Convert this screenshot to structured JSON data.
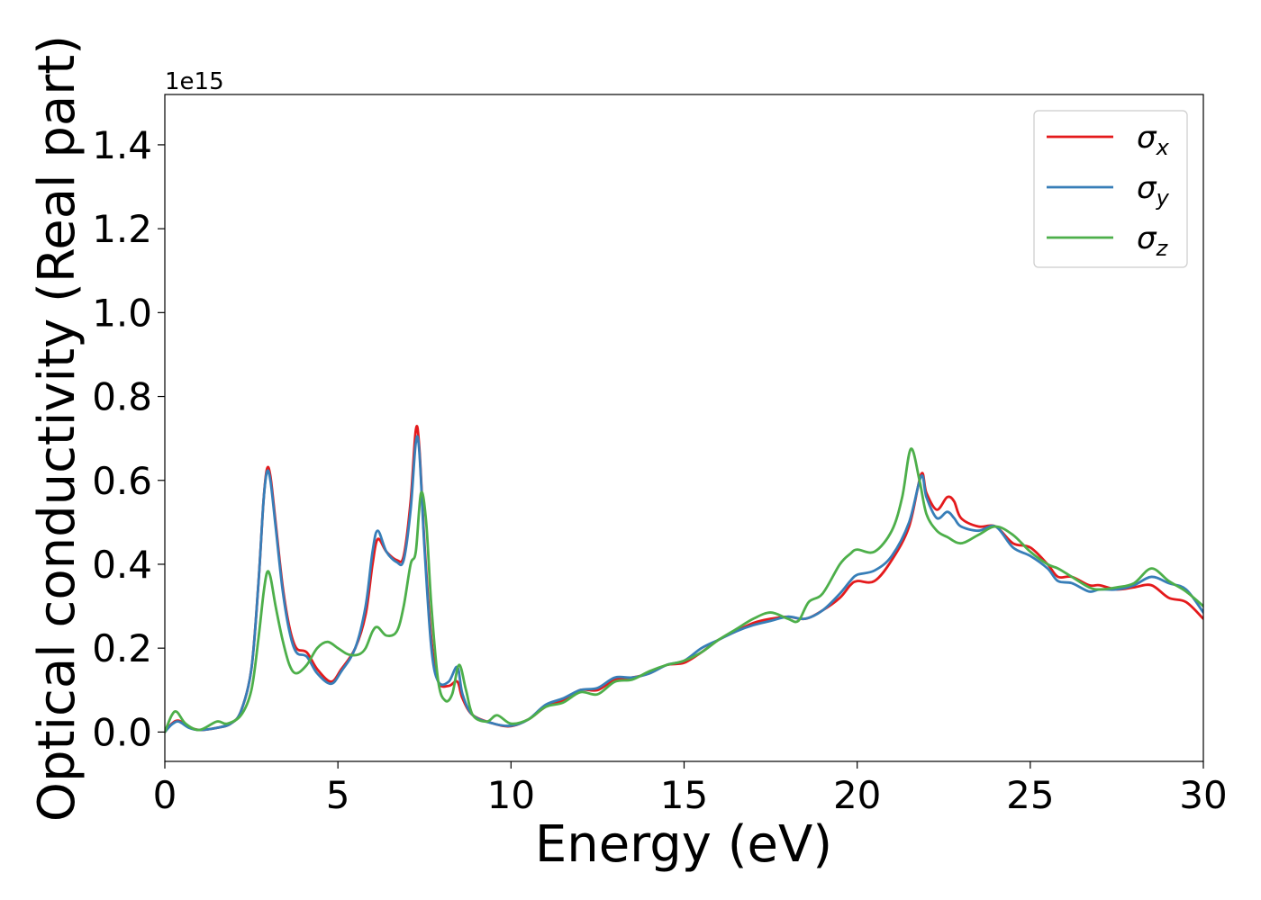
{
  "chart_data": {
    "type": "line",
    "title": "",
    "xlabel": "Energy (eV)",
    "ylabel": "Optical conductivity (Real part)",
    "y_offset_text": "1e15",
    "y_scale": 1000000000000000.0,
    "xlim": [
      0,
      30
    ],
    "ylim": [
      -0.07,
      1.52
    ],
    "xticks": [
      0,
      5,
      10,
      15,
      20,
      25,
      30
    ],
    "xtick_labels": [
      "0",
      "5",
      "10",
      "15",
      "20",
      "25",
      "30"
    ],
    "yticks": [
      0.0,
      0.2,
      0.4,
      0.6,
      0.8,
      1.0,
      1.2,
      1.4
    ],
    "ytick_labels": [
      "0.0",
      "0.2",
      "0.4",
      "0.6",
      "0.8",
      "1.0",
      "1.2",
      "1.4"
    ],
    "grid": false,
    "legend_position": "top-right",
    "series": [
      {
        "name": "σx",
        "legend_symbol": "σ",
        "legend_subscript": "x",
        "color": "#e41a1c",
        "points": [
          [
            0,
            0.0
          ],
          [
            0.2,
            0.02
          ],
          [
            0.4,
            0.027
          ],
          [
            0.7,
            0.012
          ],
          [
            1.0,
            0.005
          ],
          [
            1.5,
            0.01
          ],
          [
            1.9,
            0.02
          ],
          [
            2.2,
            0.05
          ],
          [
            2.5,
            0.15
          ],
          [
            2.7,
            0.35
          ],
          [
            2.85,
            0.55
          ],
          [
            2.95,
            0.627
          ],
          [
            3.05,
            0.61
          ],
          [
            3.2,
            0.5
          ],
          [
            3.4,
            0.35
          ],
          [
            3.6,
            0.25
          ],
          [
            3.8,
            0.2
          ],
          [
            4.1,
            0.19
          ],
          [
            4.4,
            0.15
          ],
          [
            4.8,
            0.12
          ],
          [
            5.1,
            0.15
          ],
          [
            5.5,
            0.2
          ],
          [
            5.8,
            0.28
          ],
          [
            6.0,
            0.4
          ],
          [
            6.15,
            0.46
          ],
          [
            6.4,
            0.43
          ],
          [
            6.7,
            0.41
          ],
          [
            6.9,
            0.42
          ],
          [
            7.1,
            0.55
          ],
          [
            7.25,
            0.72
          ],
          [
            7.35,
            0.68
          ],
          [
            7.5,
            0.45
          ],
          [
            7.7,
            0.22
          ],
          [
            7.9,
            0.12
          ],
          [
            8.2,
            0.11
          ],
          [
            8.45,
            0.12
          ],
          [
            8.6,
            0.08
          ],
          [
            8.9,
            0.04
          ],
          [
            9.5,
            0.02
          ],
          [
            10.0,
            0.014
          ],
          [
            10.5,
            0.03
          ],
          [
            11.0,
            0.06
          ],
          [
            11.5,
            0.075
          ],
          [
            12.0,
            0.1
          ],
          [
            12.5,
            0.1
          ],
          [
            13.0,
            0.125
          ],
          [
            13.5,
            0.13
          ],
          [
            14.0,
            0.14
          ],
          [
            14.5,
            0.16
          ],
          [
            15.0,
            0.165
          ],
          [
            15.5,
            0.19
          ],
          [
            16.0,
            0.22
          ],
          [
            16.5,
            0.24
          ],
          [
            17.0,
            0.26
          ],
          [
            17.5,
            0.27
          ],
          [
            18.0,
            0.275
          ],
          [
            18.5,
            0.27
          ],
          [
            19.0,
            0.29
          ],
          [
            19.5,
            0.32
          ],
          [
            19.8,
            0.35
          ],
          [
            20.0,
            0.36
          ],
          [
            20.5,
            0.36
          ],
          [
            21.0,
            0.41
          ],
          [
            21.5,
            0.49
          ],
          [
            21.85,
            0.615
          ],
          [
            22.0,
            0.57
          ],
          [
            22.3,
            0.53
          ],
          [
            22.6,
            0.56
          ],
          [
            22.8,
            0.55
          ],
          [
            23.0,
            0.51
          ],
          [
            23.5,
            0.49
          ],
          [
            24.0,
            0.49
          ],
          [
            24.5,
            0.45
          ],
          [
            25.0,
            0.44
          ],
          [
            25.5,
            0.4
          ],
          [
            25.8,
            0.37
          ],
          [
            26.2,
            0.37
          ],
          [
            26.7,
            0.35
          ],
          [
            27.0,
            0.35
          ],
          [
            27.5,
            0.34
          ],
          [
            28.0,
            0.345
          ],
          [
            28.5,
            0.35
          ],
          [
            29.0,
            0.32
          ],
          [
            29.5,
            0.31
          ],
          [
            30.0,
            0.27
          ]
        ]
      },
      {
        "name": "σy",
        "legend_symbol": "σ",
        "legend_subscript": "y",
        "color": "#377eb8",
        "points": [
          [
            0,
            0.0
          ],
          [
            0.2,
            0.018
          ],
          [
            0.4,
            0.025
          ],
          [
            0.7,
            0.01
          ],
          [
            1.0,
            0.005
          ],
          [
            1.5,
            0.01
          ],
          [
            1.9,
            0.02
          ],
          [
            2.2,
            0.05
          ],
          [
            2.5,
            0.15
          ],
          [
            2.7,
            0.35
          ],
          [
            2.85,
            0.55
          ],
          [
            2.95,
            0.62
          ],
          [
            3.05,
            0.6
          ],
          [
            3.2,
            0.49
          ],
          [
            3.4,
            0.34
          ],
          [
            3.6,
            0.24
          ],
          [
            3.8,
            0.19
          ],
          [
            4.1,
            0.18
          ],
          [
            4.4,
            0.14
          ],
          [
            4.8,
            0.115
          ],
          [
            5.1,
            0.145
          ],
          [
            5.5,
            0.2
          ],
          [
            5.8,
            0.3
          ],
          [
            6.0,
            0.43
          ],
          [
            6.15,
            0.48
          ],
          [
            6.4,
            0.43
          ],
          [
            6.7,
            0.405
          ],
          [
            6.9,
            0.41
          ],
          [
            7.1,
            0.53
          ],
          [
            7.25,
            0.69
          ],
          [
            7.35,
            0.67
          ],
          [
            7.5,
            0.44
          ],
          [
            7.7,
            0.2
          ],
          [
            7.9,
            0.12
          ],
          [
            8.2,
            0.12
          ],
          [
            8.45,
            0.155
          ],
          [
            8.6,
            0.09
          ],
          [
            8.9,
            0.04
          ],
          [
            9.5,
            0.02
          ],
          [
            10.0,
            0.015
          ],
          [
            10.5,
            0.03
          ],
          [
            11.0,
            0.065
          ],
          [
            11.5,
            0.08
          ],
          [
            12.0,
            0.1
          ],
          [
            12.5,
            0.105
          ],
          [
            13.0,
            0.13
          ],
          [
            13.5,
            0.13
          ],
          [
            14.0,
            0.14
          ],
          [
            14.5,
            0.16
          ],
          [
            15.0,
            0.17
          ],
          [
            15.5,
            0.2
          ],
          [
            16.0,
            0.22
          ],
          [
            16.5,
            0.24
          ],
          [
            17.0,
            0.255
          ],
          [
            17.5,
            0.265
          ],
          [
            18.0,
            0.275
          ],
          [
            18.5,
            0.27
          ],
          [
            19.0,
            0.29
          ],
          [
            19.5,
            0.33
          ],
          [
            19.8,
            0.36
          ],
          [
            20.0,
            0.375
          ],
          [
            20.5,
            0.385
          ],
          [
            21.0,
            0.42
          ],
          [
            21.5,
            0.5
          ],
          [
            21.85,
            0.61
          ],
          [
            22.0,
            0.56
          ],
          [
            22.3,
            0.51
          ],
          [
            22.6,
            0.525
          ],
          [
            22.8,
            0.51
          ],
          [
            23.0,
            0.49
          ],
          [
            23.5,
            0.48
          ],
          [
            24.0,
            0.49
          ],
          [
            24.5,
            0.44
          ],
          [
            25.0,
            0.42
          ],
          [
            25.5,
            0.39
          ],
          [
            25.8,
            0.36
          ],
          [
            26.2,
            0.355
          ],
          [
            26.7,
            0.335
          ],
          [
            27.0,
            0.34
          ],
          [
            27.5,
            0.34
          ],
          [
            28.0,
            0.35
          ],
          [
            28.5,
            0.37
          ],
          [
            29.0,
            0.355
          ],
          [
            29.5,
            0.34
          ],
          [
            30.0,
            0.285
          ]
        ]
      },
      {
        "name": "σz",
        "legend_symbol": "σ",
        "legend_subscript": "z",
        "color": "#4daf4a",
        "points": [
          [
            0,
            0.0
          ],
          [
            0.2,
            0.04
          ],
          [
            0.35,
            0.048
          ],
          [
            0.6,
            0.02
          ],
          [
            1.0,
            0.005
          ],
          [
            1.5,
            0.025
          ],
          [
            1.8,
            0.02
          ],
          [
            2.2,
            0.04
          ],
          [
            2.5,
            0.1
          ],
          [
            2.7,
            0.22
          ],
          [
            2.85,
            0.33
          ],
          [
            2.95,
            0.38
          ],
          [
            3.05,
            0.37
          ],
          [
            3.2,
            0.3
          ],
          [
            3.4,
            0.22
          ],
          [
            3.6,
            0.16
          ],
          [
            3.8,
            0.14
          ],
          [
            4.1,
            0.16
          ],
          [
            4.4,
            0.2
          ],
          [
            4.7,
            0.215
          ],
          [
            5.0,
            0.2
          ],
          [
            5.3,
            0.185
          ],
          [
            5.6,
            0.185
          ],
          [
            5.8,
            0.2
          ],
          [
            6.0,
            0.24
          ],
          [
            6.15,
            0.25
          ],
          [
            6.4,
            0.23
          ],
          [
            6.7,
            0.24
          ],
          [
            6.9,
            0.3
          ],
          [
            7.1,
            0.4
          ],
          [
            7.25,
            0.43
          ],
          [
            7.4,
            0.57
          ],
          [
            7.55,
            0.5
          ],
          [
            7.7,
            0.3
          ],
          [
            7.9,
            0.12
          ],
          [
            8.1,
            0.075
          ],
          [
            8.3,
            0.09
          ],
          [
            8.5,
            0.16
          ],
          [
            8.7,
            0.1
          ],
          [
            8.9,
            0.04
          ],
          [
            9.3,
            0.025
          ],
          [
            9.6,
            0.04
          ],
          [
            10.0,
            0.02
          ],
          [
            10.5,
            0.03
          ],
          [
            11.0,
            0.06
          ],
          [
            11.5,
            0.07
          ],
          [
            12.0,
            0.095
          ],
          [
            12.5,
            0.09
          ],
          [
            13.0,
            0.12
          ],
          [
            13.5,
            0.125
          ],
          [
            14.0,
            0.145
          ],
          [
            14.5,
            0.16
          ],
          [
            15.0,
            0.17
          ],
          [
            15.5,
            0.19
          ],
          [
            16.0,
            0.22
          ],
          [
            16.5,
            0.245
          ],
          [
            17.0,
            0.27
          ],
          [
            17.5,
            0.285
          ],
          [
            18.0,
            0.27
          ],
          [
            18.3,
            0.265
          ],
          [
            18.6,
            0.31
          ],
          [
            19.0,
            0.33
          ],
          [
            19.5,
            0.4
          ],
          [
            19.8,
            0.425
          ],
          [
            20.0,
            0.435
          ],
          [
            20.5,
            0.43
          ],
          [
            21.0,
            0.48
          ],
          [
            21.3,
            0.56
          ],
          [
            21.55,
            0.675
          ],
          [
            21.8,
            0.6
          ],
          [
            22.0,
            0.52
          ],
          [
            22.3,
            0.48
          ],
          [
            22.6,
            0.465
          ],
          [
            23.0,
            0.45
          ],
          [
            23.5,
            0.47
          ],
          [
            24.0,
            0.49
          ],
          [
            24.5,
            0.47
          ],
          [
            25.0,
            0.43
          ],
          [
            25.5,
            0.4
          ],
          [
            25.8,
            0.39
          ],
          [
            26.2,
            0.37
          ],
          [
            26.7,
            0.345
          ],
          [
            27.0,
            0.34
          ],
          [
            27.5,
            0.345
          ],
          [
            28.0,
            0.355
          ],
          [
            28.5,
            0.39
          ],
          [
            29.0,
            0.36
          ],
          [
            29.5,
            0.335
          ],
          [
            30.0,
            0.3
          ]
        ]
      }
    ]
  }
}
